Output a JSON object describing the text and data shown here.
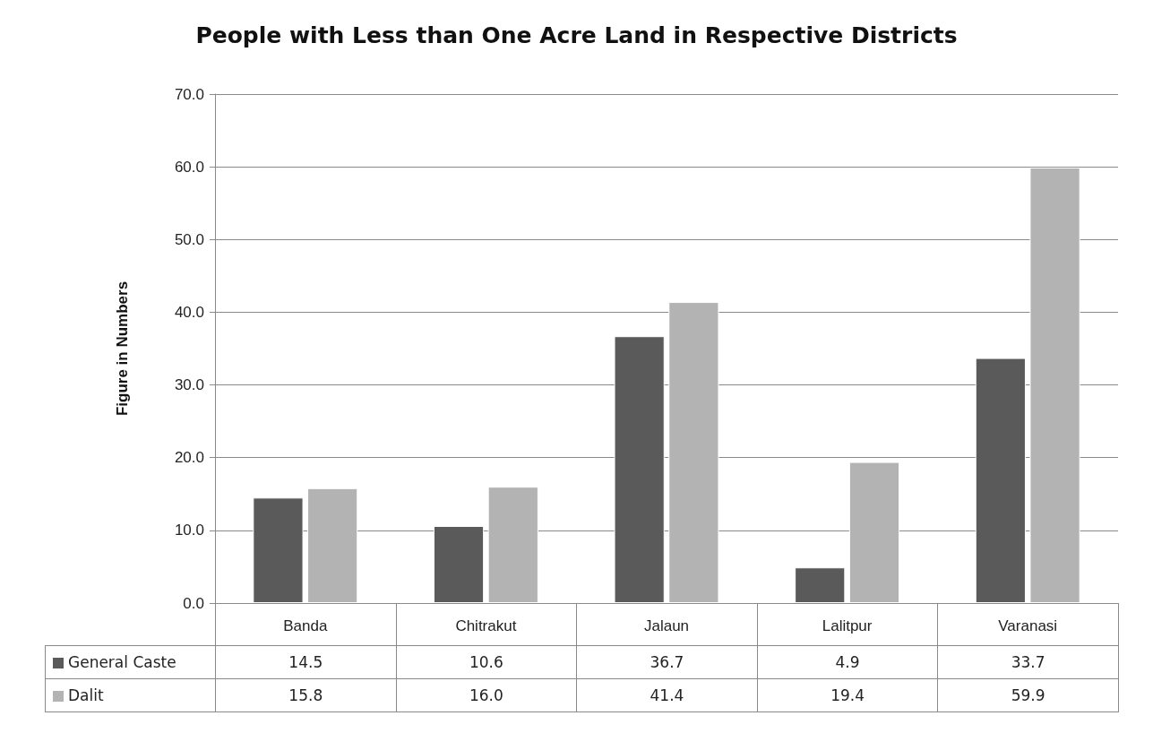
{
  "chart_data": {
    "type": "bar",
    "title": "People with Less than One Acre Land in Respective Districts",
    "ylabel": "Figure in Numbers",
    "categories": [
      "Banda",
      "Chitrakut",
      "Jalaun",
      "Lalitpur",
      "Varanasi"
    ],
    "series": [
      {
        "name": "General Caste",
        "color": "#5a5a5a",
        "values": [
          14.5,
          10.6,
          36.7,
          4.9,
          33.7
        ],
        "value_labels": [
          "14.5",
          "10.6",
          "36.7",
          "4.9",
          "33.7"
        ]
      },
      {
        "name": "Dalit",
        "color": "#b3b3b3",
        "values": [
          15.8,
          16.0,
          41.4,
          19.4,
          59.9
        ],
        "value_labels": [
          "15.8",
          "16.0",
          "41.4",
          "19.4",
          "59.9"
        ]
      }
    ],
    "ylim": [
      0,
      70
    ],
    "yticks": [
      {
        "value": 0,
        "label": "0.0"
      },
      {
        "value": 10,
        "label": "10.0"
      },
      {
        "value": 20,
        "label": "20.0"
      },
      {
        "value": 30,
        "label": "30.0"
      },
      {
        "value": 40,
        "label": "40.0"
      },
      {
        "value": 50,
        "label": "50.0"
      },
      {
        "value": 60,
        "label": "60.0"
      },
      {
        "value": 70,
        "label": "70.0"
      }
    ],
    "grid": "y",
    "legend": "bottom left"
  }
}
